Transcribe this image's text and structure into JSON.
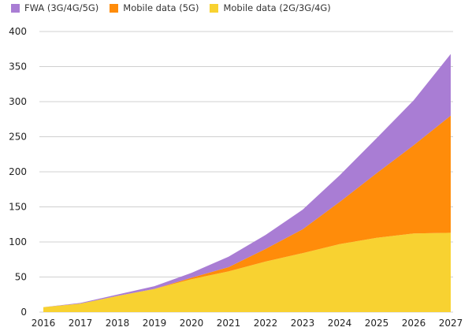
{
  "chart_data": {
    "type": "area",
    "stacked": true,
    "x": [
      "2016",
      "2017",
      "2018",
      "2019",
      "2020",
      "2021",
      "2022",
      "2023",
      "2024",
      "2025",
      "2026",
      "2027"
    ],
    "series": [
      {
        "name": "Mobile data (2G/3G/4G)",
        "color": "#f8d231",
        "values": [
          7,
          12,
          23,
          33,
          47,
          58,
          72,
          84,
          97,
          106,
          112,
          113
        ]
      },
      {
        "name": "Mobile data (5G)",
        "color": "#ff8c0a",
        "values": [
          0,
          0,
          0,
          0,
          2,
          6,
          18,
          34,
          60,
          92,
          126,
          167
        ]
      },
      {
        "name": "FWA (3G/4G/5G)",
        "color": "#a97dd4",
        "values": [
          0,
          1,
          2,
          4,
          7,
          15,
          20,
          28,
          38,
          50,
          64,
          88
        ]
      }
    ],
    "legend_order": [
      "FWA (3G/4G/5G)",
      "Mobile data (5G)",
      "Mobile data (2G/3G/4G)"
    ],
    "ylim": [
      0,
      400
    ],
    "yticks": [
      0,
      50,
      100,
      150,
      200,
      250,
      300,
      350,
      400
    ],
    "grid": true,
    "legend_position": "top-left"
  }
}
